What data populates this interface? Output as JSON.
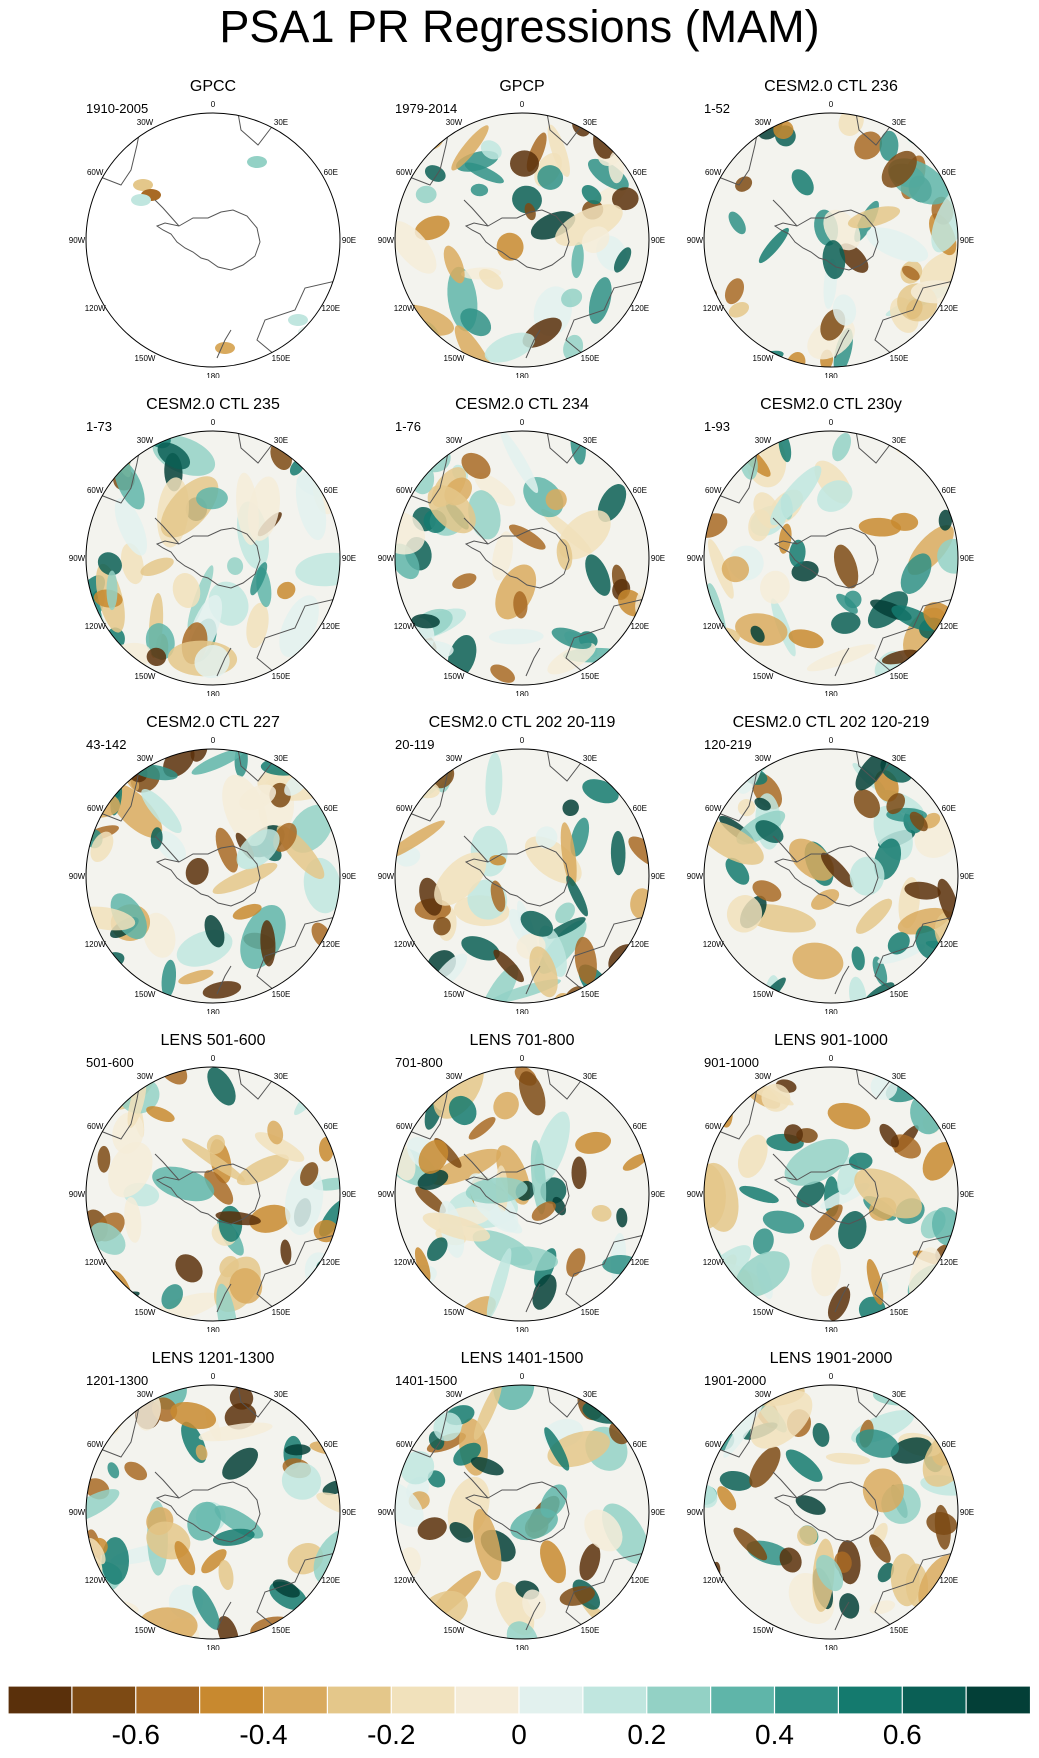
{
  "title": "PSA1 PR Regressions (MAM)",
  "lon_labels": {
    "top": "0",
    "right": "90E",
    "bottom": "180",
    "left": "90W",
    "ne30": "30E",
    "ne60": "60E",
    "se120": "120E",
    "se150": "150E",
    "sw150": "150W",
    "sw120": "120W",
    "nw60": "60W",
    "nw30": "30W"
  },
  "colors": {
    "brown_strong": "#5a300b",
    "brown_mid": "#a86a24",
    "tan": "#e4c78a",
    "cream": "#f5ecd8",
    "pale_teal": "#d9efeb",
    "teal_mid": "#5fb5a9",
    "teal_dark": "#0a5f55",
    "land": "#ffffff",
    "coast": "#555555"
  },
  "chart_data": {
    "type": "heatmap",
    "projection": "south polar stereographic",
    "variable": "PR regression onto PSA1",
    "season": "MAM",
    "panels": [
      {
        "title": "GPCC",
        "range": "1910-2005",
        "coverage": "land-only"
      },
      {
        "title": "GPCP",
        "range": "1979-2014",
        "coverage": "global"
      },
      {
        "title": "CESM2.0 CTL 236",
        "range": "1-52",
        "coverage": "global"
      },
      {
        "title": "CESM2.0 CTL 235",
        "range": "1-73",
        "coverage": "global"
      },
      {
        "title": "CESM2.0 CTL 234",
        "range": "1-76",
        "coverage": "global"
      },
      {
        "title": "CESM2.0 CTL 230y",
        "range": "1-93",
        "coverage": "global"
      },
      {
        "title": "CESM2.0 CTL 227",
        "range": "43-142",
        "coverage": "global"
      },
      {
        "title": "CESM2.0 CTL 202 20-119",
        "range": "20-119",
        "coverage": "global"
      },
      {
        "title": "CESM2.0 CTL 202 120-219",
        "range": "120-219",
        "coverage": "global"
      },
      {
        "title": "LENS 501-600",
        "range": "501-600",
        "coverage": "global"
      },
      {
        "title": "LENS 701-800",
        "range": "701-800",
        "coverage": "global"
      },
      {
        "title": "LENS 901-1000",
        "range": "901-1000",
        "coverage": "global"
      },
      {
        "title": "LENS 1201-1300",
        "range": "1201-1300",
        "coverage": "global"
      },
      {
        "title": "LENS 1401-1500",
        "range": "1401-1500",
        "coverage": "global"
      },
      {
        "title": "LENS 1901-2000",
        "range": "1901-2000",
        "coverage": "global"
      }
    ],
    "colorbar": {
      "levels": [
        -0.7,
        -0.6,
        -0.5,
        -0.4,
        -0.3,
        -0.2,
        -0.1,
        0,
        0.1,
        0.2,
        0.3,
        0.4,
        0.5,
        0.6,
        0.7
      ],
      "tick_labels": [
        "-0.6",
        "-0.4",
        "-0.2",
        "0",
        "0.2",
        "0.4",
        "0.6"
      ],
      "tick_values": [
        -0.6,
        -0.4,
        -0.2,
        0,
        0.2,
        0.4,
        0.6
      ],
      "colors": [
        "#5a300b",
        "#7d4a14",
        "#a86a24",
        "#c8892f",
        "#d9aa5e",
        "#e4c78a",
        "#f1e1bb",
        "#f5ecd8",
        "#e2f1ee",
        "#c0e6df",
        "#93d1c5",
        "#5fb5a9",
        "#2f9186",
        "#147a6e",
        "#0a5f55",
        "#033f37"
      ]
    }
  }
}
